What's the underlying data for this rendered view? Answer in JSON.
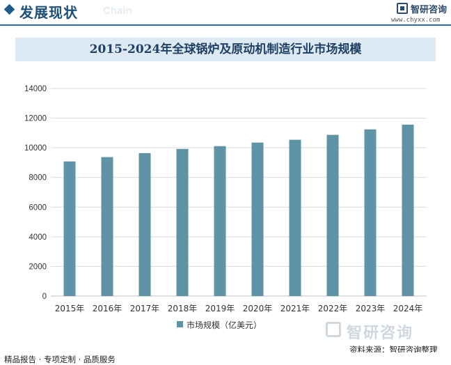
{
  "header": {
    "section_title": "发展现状",
    "section_subtitle": "Chain",
    "brand_name": "智研咨询",
    "brand_url": "www.chyxx.com"
  },
  "chart_data": {
    "type": "bar",
    "title": "2015-2024年全球锅炉及原动机制造行业市场规模",
    "categories": [
      "2015年",
      "2016年",
      "2017年",
      "2018年",
      "2019年",
      "2020年",
      "2021年",
      "2022年",
      "2023年",
      "2024年"
    ],
    "series": [
      {
        "name": "市场规模（亿美元）",
        "values": [
          9080,
          9370,
          9640,
          9920,
          10110,
          10350,
          10540,
          10870,
          11240,
          11560
        ]
      }
    ],
    "yticks": [
      "0",
      "2000",
      "4000",
      "6000",
      "8000",
      "10000",
      "12000",
      "14000"
    ],
    "ylim": [
      0,
      14000
    ],
    "grid": true,
    "legend_position": "bottom",
    "bar_color": "#5f93a6"
  },
  "watermark": {
    "brand_name": "智研咨询"
  },
  "source_text": "资料来源：智研咨询整理",
  "footer_text": "精品报告 · 专项定制 · 品质服务"
}
